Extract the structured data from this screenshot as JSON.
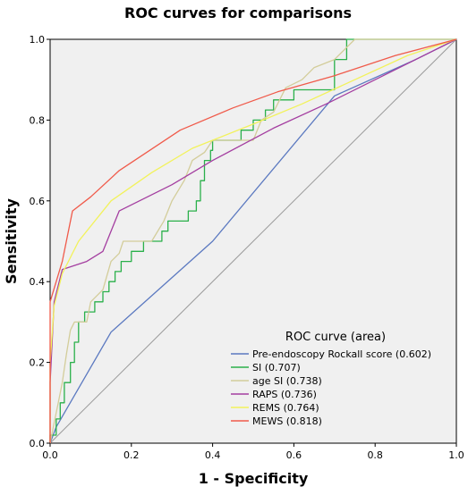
{
  "chart_data": {
    "type": "line",
    "title": "ROC curves for comparisons",
    "xlabel": "1 - Specificity",
    "ylabel": "Sensitivity",
    "xlim": [
      0,
      1
    ],
    "ylim": [
      0,
      1
    ],
    "xticks": [
      "0.0",
      "0.2",
      "0.4",
      "0.6",
      "0.8",
      "1.0"
    ],
    "yticks": [
      "0.0",
      "0.2",
      "0.4",
      "0.6",
      "0.8",
      "1.0"
    ],
    "grid": false,
    "background": "#f0f0f0",
    "reference_line": true,
    "legend": {
      "title": "ROC curve (area)",
      "placement": "bottom-right"
    },
    "series": [
      {
        "name": "Pre-endoscopy Rockall score (0.602)",
        "color": "#5b79c0",
        "points": [
          [
            0,
            0
          ],
          [
            0.015,
            0.04
          ],
          [
            0.15,
            0.275
          ],
          [
            0.4,
            0.5
          ],
          [
            0.7,
            0.86
          ],
          [
            0.9,
            0.95
          ],
          [
            1,
            1
          ]
        ]
      },
      {
        "name": "SI (0.707)",
        "color": "#2ab04a",
        "points": [
          [
            0,
            0
          ],
          [
            0,
            0.02
          ],
          [
            0.015,
            0.02
          ],
          [
            0.015,
            0.06
          ],
          [
            0.025,
            0.06
          ],
          [
            0.025,
            0.1
          ],
          [
            0.035,
            0.1
          ],
          [
            0.035,
            0.15
          ],
          [
            0.05,
            0.15
          ],
          [
            0.05,
            0.2
          ],
          [
            0.06,
            0.2
          ],
          [
            0.06,
            0.25
          ],
          [
            0.07,
            0.25
          ],
          [
            0.07,
            0.3
          ],
          [
            0.085,
            0.3
          ],
          [
            0.085,
            0.325
          ],
          [
            0.11,
            0.325
          ],
          [
            0.11,
            0.35
          ],
          [
            0.13,
            0.35
          ],
          [
            0.13,
            0.375
          ],
          [
            0.145,
            0.375
          ],
          [
            0.145,
            0.4
          ],
          [
            0.16,
            0.4
          ],
          [
            0.16,
            0.425
          ],
          [
            0.175,
            0.425
          ],
          [
            0.175,
            0.45
          ],
          [
            0.2,
            0.45
          ],
          [
            0.2,
            0.475
          ],
          [
            0.23,
            0.475
          ],
          [
            0.23,
            0.5
          ],
          [
            0.275,
            0.5
          ],
          [
            0.275,
            0.525
          ],
          [
            0.29,
            0.525
          ],
          [
            0.29,
            0.55
          ],
          [
            0.34,
            0.55
          ],
          [
            0.34,
            0.575
          ],
          [
            0.36,
            0.575
          ],
          [
            0.36,
            0.6
          ],
          [
            0.37,
            0.6
          ],
          [
            0.37,
            0.65
          ],
          [
            0.38,
            0.65
          ],
          [
            0.38,
            0.7
          ],
          [
            0.395,
            0.7
          ],
          [
            0.395,
            0.725
          ],
          [
            0.4,
            0.725
          ],
          [
            0.4,
            0.75
          ],
          [
            0.47,
            0.75
          ],
          [
            0.47,
            0.775
          ],
          [
            0.5,
            0.775
          ],
          [
            0.5,
            0.8
          ],
          [
            0.53,
            0.8
          ],
          [
            0.53,
            0.825
          ],
          [
            0.55,
            0.825
          ],
          [
            0.55,
            0.85
          ],
          [
            0.6,
            0.85
          ],
          [
            0.6,
            0.875
          ],
          [
            0.7,
            0.875
          ],
          [
            0.7,
            0.95
          ],
          [
            0.73,
            0.95
          ],
          [
            0.73,
            1
          ],
          [
            1,
            1
          ]
        ]
      },
      {
        "name": "age SI (0.738)",
        "color": "#d3cd9a",
        "points": [
          [
            0,
            0
          ],
          [
            0.01,
            0.05
          ],
          [
            0.02,
            0.1
          ],
          [
            0.03,
            0.15
          ],
          [
            0.04,
            0.22
          ],
          [
            0.05,
            0.28
          ],
          [
            0.06,
            0.3
          ],
          [
            0.09,
            0.3
          ],
          [
            0.1,
            0.35
          ],
          [
            0.13,
            0.38
          ],
          [
            0.15,
            0.45
          ],
          [
            0.17,
            0.47
          ],
          [
            0.18,
            0.5
          ],
          [
            0.25,
            0.5
          ],
          [
            0.28,
            0.55
          ],
          [
            0.3,
            0.6
          ],
          [
            0.33,
            0.65
          ],
          [
            0.35,
            0.7
          ],
          [
            0.38,
            0.72
          ],
          [
            0.4,
            0.75
          ],
          [
            0.5,
            0.75
          ],
          [
            0.52,
            0.8
          ],
          [
            0.55,
            0.82
          ],
          [
            0.58,
            0.88
          ],
          [
            0.62,
            0.9
          ],
          [
            0.65,
            0.93
          ],
          [
            0.7,
            0.95
          ],
          [
            0.75,
            1
          ],
          [
            1,
            1
          ]
        ]
      },
      {
        "name": "RAPS (0.736)",
        "color": "#a43ea0",
        "points": [
          [
            0,
            0
          ],
          [
            0,
            0.15
          ],
          [
            0.01,
            0.35
          ],
          [
            0.03,
            0.43
          ],
          [
            0.09,
            0.45
          ],
          [
            0.13,
            0.475
          ],
          [
            0.17,
            0.575
          ],
          [
            0.3,
            0.64
          ],
          [
            0.4,
            0.7
          ],
          [
            0.55,
            0.78
          ],
          [
            0.68,
            0.84
          ],
          [
            0.8,
            0.9
          ],
          [
            0.92,
            0.96
          ],
          [
            1,
            1
          ]
        ]
      },
      {
        "name": "REMS (0.764)",
        "color": "#f2f25a",
        "points": [
          [
            0,
            0
          ],
          [
            0,
            0.2
          ],
          [
            0.01,
            0.34
          ],
          [
            0.03,
            0.42
          ],
          [
            0.07,
            0.5
          ],
          [
            0.15,
            0.6
          ],
          [
            0.25,
            0.67
          ],
          [
            0.35,
            0.73
          ],
          [
            0.5,
            0.79
          ],
          [
            0.62,
            0.84
          ],
          [
            0.75,
            0.9
          ],
          [
            0.88,
            0.96
          ],
          [
            1,
            1
          ]
        ]
      },
      {
        "name": "MEWS (0.818)",
        "color": "#f05a4a",
        "points": [
          [
            0,
            0
          ],
          [
            0,
            0.35
          ],
          [
            0.03,
            0.45
          ],
          [
            0.055,
            0.575
          ],
          [
            0.1,
            0.61
          ],
          [
            0.17,
            0.675
          ],
          [
            0.32,
            0.775
          ],
          [
            0.45,
            0.83
          ],
          [
            0.56,
            0.87
          ],
          [
            0.7,
            0.91
          ],
          [
            0.85,
            0.96
          ],
          [
            1,
            1
          ]
        ]
      }
    ]
  }
}
